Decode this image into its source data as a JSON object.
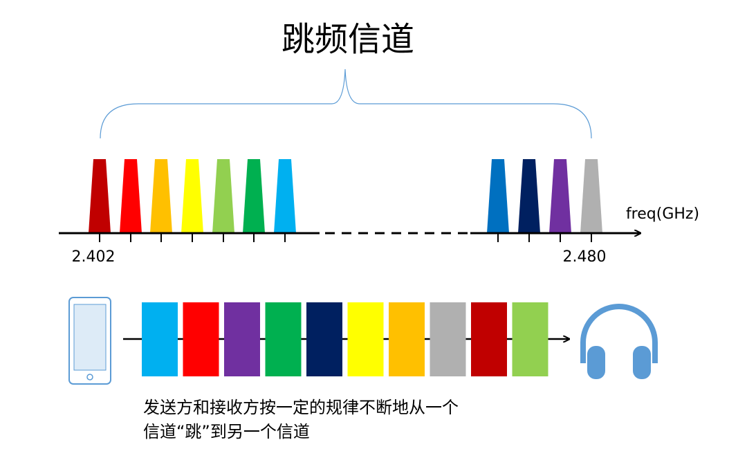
{
  "title": "跳频信道",
  "axis": {
    "label": "freq(GHz)",
    "start": "2.402",
    "end": "2.480"
  },
  "caption": [
    "发送方和接收方按一定的规律不断地从一个",
    "信道“跳”到另一个信道"
  ]
}
